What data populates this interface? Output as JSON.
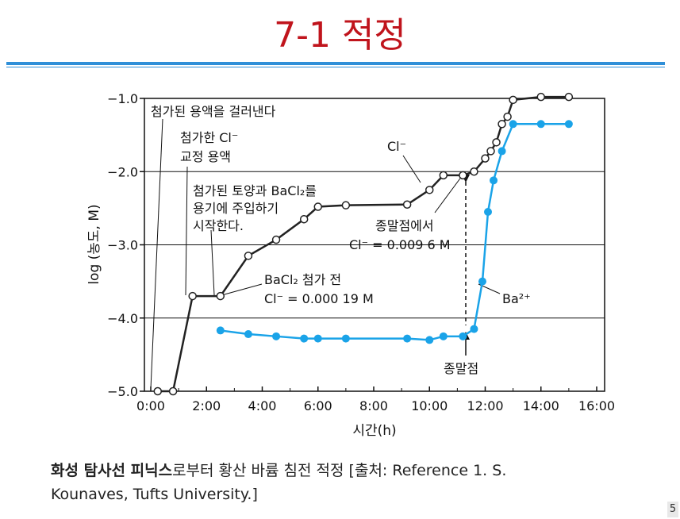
{
  "slide_title": "7-1 적정",
  "caption": {
    "bold": "화성 탐사선 피닉스",
    "rest_line1": "로부터 황산 바륨 침전 적정 [출처: Reference 1. S.",
    "line2": "Kounaves, Tufts University.]"
  },
  "page_number": "5",
  "colors": {
    "title": "#c0141c",
    "rule": "#2f8fd8",
    "cl_series": "#222222",
    "ba_series": "#1aa3e8"
  },
  "chart_data": {
    "type": "line",
    "xlabel": "시간(h)",
    "ylabel": "log (농도, M)",
    "xlim": [
      0,
      16.5
    ],
    "ylim": [
      -5.0,
      -1.0
    ],
    "x_ticks": [
      {
        "value": 0,
        "label": "0:00"
      },
      {
        "value": 2,
        "label": "2:00"
      },
      {
        "value": 4,
        "label": "4:00"
      },
      {
        "value": 6,
        "label": "6:00"
      },
      {
        "value": 8,
        "label": "8:00"
      },
      {
        "value": 10,
        "label": "10:00"
      },
      {
        "value": 12,
        "label": "12:00"
      },
      {
        "value": 14,
        "label": "14:00"
      },
      {
        "value": 16,
        "label": "16:00"
      }
    ],
    "y_ticks": [
      {
        "value": -1.0,
        "label": "−1.0"
      },
      {
        "value": -2.0,
        "label": "−2.0"
      },
      {
        "value": -3.0,
        "label": "−3.0"
      },
      {
        "value": -4.0,
        "label": "−4.0"
      },
      {
        "value": -5.0,
        "label": "−5.0"
      }
    ],
    "gridlines_y": [
      -2.0,
      -3.0,
      -4.0
    ],
    "series": [
      {
        "name": "Cl⁻",
        "style": "open-circle",
        "x": [
          0.25,
          0.8,
          1.5,
          2.5,
          3.5,
          4.5,
          5.5,
          6.0,
          7.0,
          9.2,
          10.0,
          10.5,
          11.2,
          11.6,
          12.0,
          12.2,
          12.4,
          12.6,
          12.8,
          13.0,
          14.0,
          15.0
        ],
        "y": [
          -5.0,
          -5.0,
          -3.7,
          -3.7,
          -3.15,
          -2.93,
          -2.65,
          -2.48,
          -2.46,
          -2.45,
          -2.25,
          -2.05,
          -2.05,
          -2.0,
          -1.82,
          -1.72,
          -1.6,
          -1.35,
          -1.25,
          -1.02,
          -0.98,
          -0.98
        ]
      },
      {
        "name": "Ba²⁺",
        "style": "filled-circle",
        "x": [
          2.5,
          3.5,
          4.5,
          5.5,
          6.0,
          7.0,
          9.2,
          10.0,
          10.5,
          11.2,
          11.6,
          11.9,
          12.1,
          12.3,
          12.6,
          13.0,
          14.0,
          15.0
        ],
        "y": [
          -4.17,
          -4.22,
          -4.25,
          -4.28,
          -4.28,
          -4.28,
          -4.28,
          -4.3,
          -4.25,
          -4.25,
          -4.15,
          -3.5,
          -2.55,
          -2.12,
          -1.72,
          -1.35,
          -1.35,
          -1.35
        ]
      }
    ],
    "annotations": {
      "filter": "첨가된 용액을 걸러낸다",
      "standard_line1": "첨가한 Cl⁻",
      "standard_line2": "교정 용액",
      "soil_line1": "첨가된 토양과 BaCl₂를",
      "soil_line2": "용기에 주입하기",
      "soil_line3": "시작한다.",
      "before_line1": "BaCl₂ 첨가 전",
      "before_line2": "Cl⁻ = 0.000 19 M",
      "cl_label": "Cl⁻",
      "endpoint_line1": "종말점에서",
      "endpoint_line2": "Cl⁻ = 0.009 6 M",
      "ba_label": "Ba²⁺",
      "endpoint": "종말점"
    }
  }
}
